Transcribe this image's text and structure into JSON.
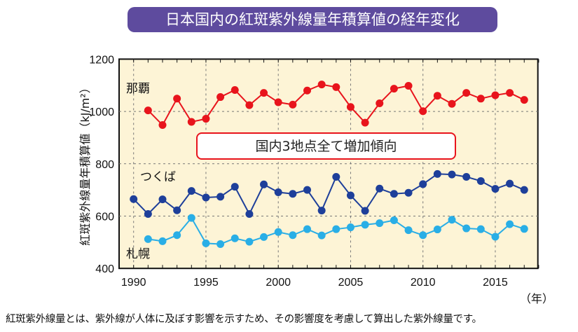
{
  "title": "日本国内の紅斑紫外線量年積算値の経年変化",
  "footnote": "紅斑紫外線量とは、紫外線が人体に及ぼす影響を示すため、その影響度を考慮して算出した紫外線量です。",
  "chart_data": {
    "type": "line",
    "title": "日本国内の紅斑紫外線量年積算値の経年変化",
    "ylabel": "紅斑紫外線量年積算値（kJ/m²）",
    "xlabel": "（年）",
    "xlim": [
      1989,
      2018
    ],
    "ylim": [
      400,
      1200
    ],
    "xticks": [
      1990,
      1995,
      2000,
      2005,
      2010,
      2015
    ],
    "yticks": [
      400,
      600,
      800,
      1000,
      1200
    ],
    "grid": true,
    "annotation": "国内3地点全て増加傾向",
    "background_color": "#fdf4d6",
    "series": [
      {
        "name": "那覇",
        "color": "#e8141c",
        "x": [
          1991,
          1992,
          1993,
          1994,
          1995,
          1996,
          1997,
          1998,
          1999,
          2000,
          2001,
          2002,
          2003,
          2004,
          2005,
          2006,
          2007,
          2008,
          2009,
          2010,
          2011,
          2012,
          2013,
          2014,
          2015,
          2016,
          2017
        ],
        "values": [
          1004,
          948,
          1049,
          960,
          972,
          1055,
          1082,
          1024,
          1071,
          1035,
          1026,
          1080,
          1103,
          1093,
          1017,
          957,
          1031,
          1087,
          1098,
          1001,
          1060,
          1029,
          1071,
          1049,
          1062,
          1071,
          1044
        ]
      },
      {
        "name": "つくば",
        "color": "#1e3f9a",
        "x": [
          1990,
          1991,
          1992,
          1993,
          1994,
          1995,
          1996,
          1997,
          1998,
          1999,
          2000,
          2001,
          2002,
          2003,
          2004,
          2005,
          2006,
          2007,
          2008,
          2009,
          2010,
          2011,
          2012,
          2013,
          2014,
          2015,
          2016,
          2017
        ],
        "values": [
          665,
          608,
          664,
          622,
          696,
          671,
          674,
          712,
          608,
          721,
          691,
          685,
          700,
          621,
          750,
          679,
          620,
          705,
          685,
          689,
          722,
          761,
          759,
          750,
          734,
          704,
          724,
          700
        ]
      },
      {
        "name": "札幌",
        "color": "#29aee6",
        "x": [
          1991,
          1992,
          1993,
          1994,
          1995,
          1996,
          1997,
          1998,
          1999,
          2000,
          2001,
          2002,
          2003,
          2004,
          2005,
          2006,
          2007,
          2008,
          2009,
          2010,
          2011,
          2012,
          2013,
          2014,
          2015,
          2016,
          2017
        ],
        "values": [
          512,
          504,
          527,
          593,
          496,
          493,
          515,
          502,
          520,
          539,
          527,
          550,
          526,
          550,
          557,
          567,
          573,
          584,
          546,
          527,
          549,
          586,
          553,
          550,
          521,
          569,
          551
        ]
      }
    ]
  }
}
